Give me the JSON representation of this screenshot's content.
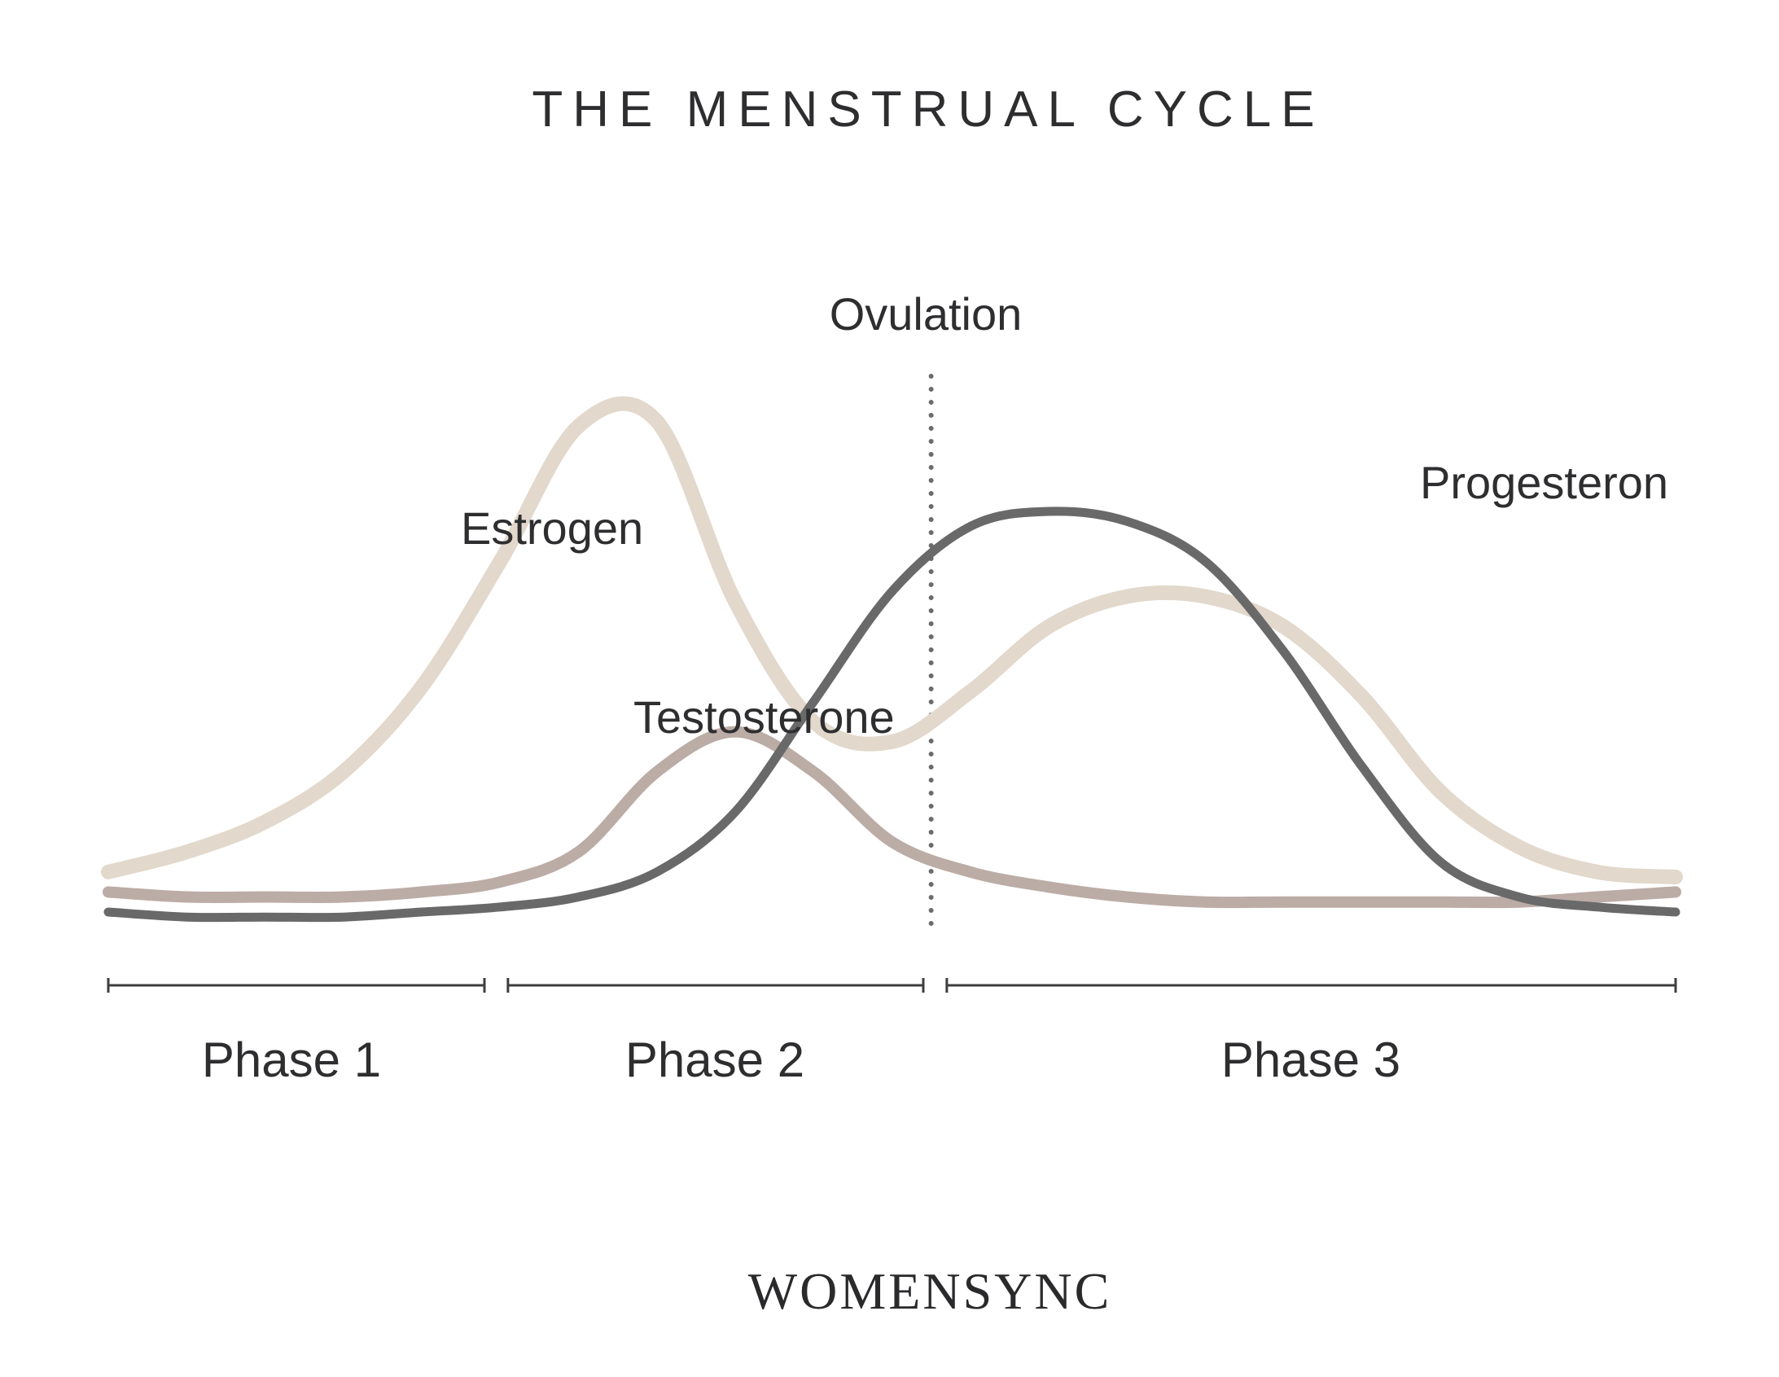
{
  "chart_data": {
    "type": "line",
    "title": "THE MENSTRUAL CYCLE",
    "xlabel": "",
    "ylabel": "",
    "grid": false,
    "legend": "none",
    "x": [
      0,
      5,
      10,
      15,
      20,
      25,
      30,
      35,
      40,
      45,
      50,
      55,
      60,
      65,
      70,
      75,
      80,
      85,
      90,
      95,
      100
    ],
    "xlim": [
      0,
      100
    ],
    "ylim": [
      0,
      100
    ],
    "series": [
      {
        "name": "Estrogen",
        "color": "#e2d8cb",
        "values": [
          8,
          12,
          18,
          28,
          45,
          70,
          97,
          98,
          62,
          38,
          34,
          44,
          57,
          63,
          63,
          57,
          43,
          24,
          13,
          8,
          7
        ]
      },
      {
        "name": "Testosterone",
        "color": "#bcaca6",
        "values": [
          4,
          3,
          3,
          3,
          4,
          6,
          12,
          28,
          36,
          28,
          14,
          8,
          5,
          3,
          2,
          2,
          2,
          2,
          2,
          3,
          4
        ]
      },
      {
        "name": "Progesteron",
        "color": "#69696a",
        "values": [
          0,
          -1,
          -1,
          -1,
          0,
          1,
          3,
          8,
          20,
          42,
          64,
          77,
          80,
          78,
          70,
          52,
          29,
          10,
          3,
          1,
          0
        ]
      }
    ],
    "annotations": [
      {
        "label": "Ovulation",
        "x": 52.5,
        "style": "dotted-vertical"
      }
    ],
    "phases": [
      {
        "label": "Phase 1",
        "start": 0,
        "end": 24
      },
      {
        "label": "Phase 2",
        "start": 25.5,
        "end": 52
      },
      {
        "label": "Phase 3",
        "start": 53.5,
        "end": 100
      }
    ]
  },
  "brand": "WOMENSYNC"
}
